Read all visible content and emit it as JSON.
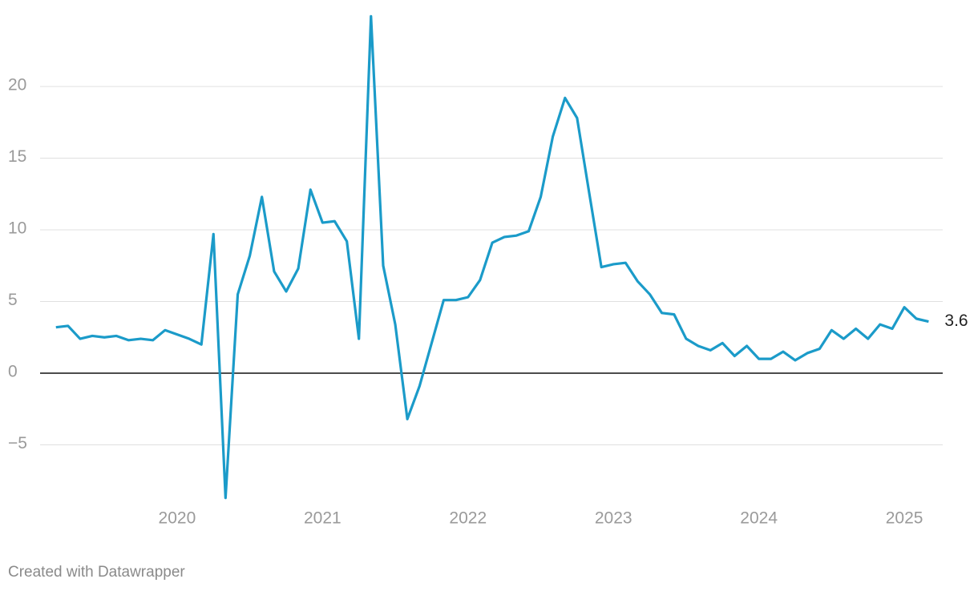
{
  "chart_data": {
    "type": "line",
    "x": [
      2019.167,
      2019.25,
      2019.333,
      2019.417,
      2019.5,
      2019.583,
      2019.667,
      2019.75,
      2019.833,
      2019.917,
      2020.0,
      2020.083,
      2020.167,
      2020.25,
      2020.333,
      2020.417,
      2020.5,
      2020.583,
      2020.667,
      2020.75,
      2020.833,
      2020.917,
      2021.0,
      2021.083,
      2021.167,
      2021.25,
      2021.333,
      2021.417,
      2021.5,
      2021.583,
      2021.667,
      2021.75,
      2021.833,
      2021.917,
      2022.0,
      2022.083,
      2022.167,
      2022.25,
      2022.333,
      2022.417,
      2022.5,
      2022.583,
      2022.667,
      2022.75,
      2022.833,
      2022.917,
      2023.0,
      2023.083,
      2023.167,
      2023.25,
      2023.333,
      2023.417,
      2023.5,
      2023.583,
      2023.667,
      2023.75,
      2023.833,
      2023.917,
      2024.0,
      2024.083,
      2024.167,
      2024.25,
      2024.333,
      2024.417,
      2024.5,
      2024.583,
      2024.667,
      2024.75,
      2024.833,
      2024.917,
      2025.0,
      2025.083,
      2025.167
    ],
    "series": [
      {
        "color": "#1b9bc9",
        "values": [
          3.2,
          3.3,
          2.4,
          2.6,
          2.5,
          2.6,
          2.3,
          2.4,
          2.3,
          3.0,
          2.7,
          2.4,
          2.0,
          9.7,
          -8.7,
          5.5,
          8.2,
          12.3,
          7.1,
          5.7,
          7.3,
          12.8,
          10.5,
          10.6,
          9.2,
          2.4,
          24.9,
          7.5,
          3.4,
          -3.2,
          -0.9,
          2.1,
          5.1,
          5.1,
          5.3,
          6.5,
          9.1,
          9.5,
          9.6,
          9.9,
          12.3,
          16.5,
          19.2,
          17.8,
          12.6,
          7.4,
          7.6,
          7.7,
          6.4,
          5.5,
          4.2,
          4.1,
          2.4,
          1.9,
          1.6,
          2.1,
          1.2,
          1.9,
          1.0,
          1.0,
          1.5,
          0.9,
          1.4,
          1.7,
          3.0,
          2.4,
          3.1,
          2.4,
          3.4,
          3.1,
          4.6,
          3.8,
          3.6
        ]
      }
    ],
    "xlim": [
      2019.058,
      2025.264
    ],
    "xticks": [
      2020,
      2021,
      2022,
      2023,
      2024,
      2025
    ],
    "ylim": [
      -9,
      25
    ],
    "yticks": [
      {
        "value": -5,
        "label": "−5"
      },
      0,
      5,
      10,
      15,
      20
    ],
    "grid": true,
    "source": "Created with Datawrapper"
  }
}
